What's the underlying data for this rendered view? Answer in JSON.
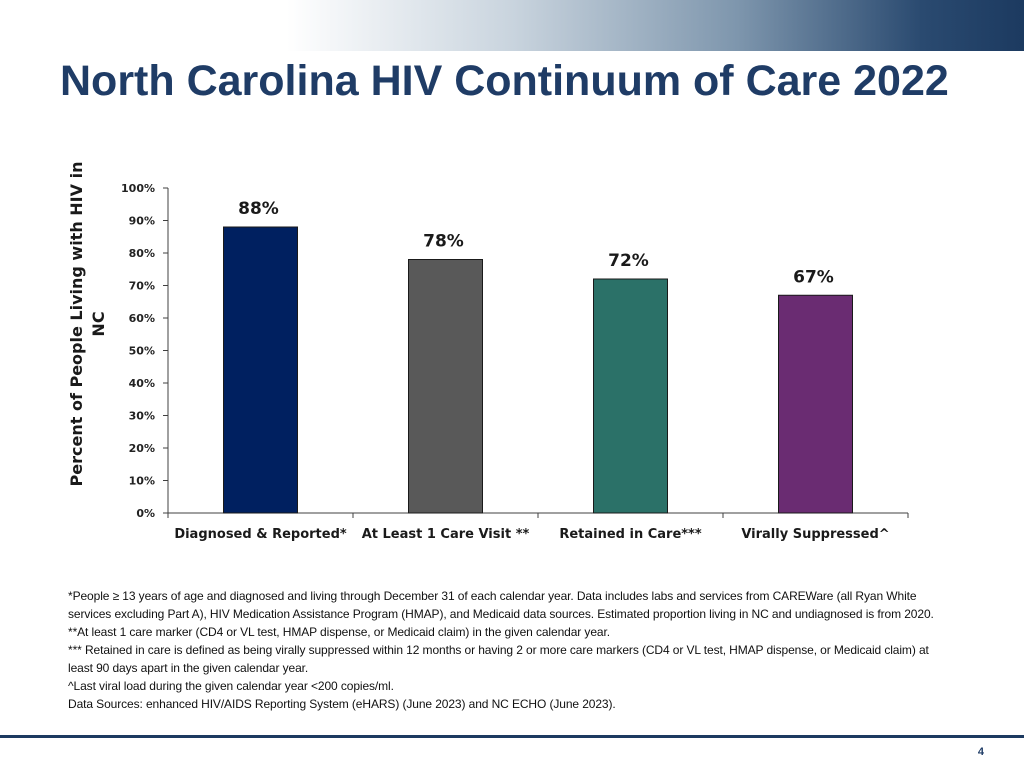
{
  "title": "North Carolina HIV Continuum of Care 2022",
  "chart_data": {
    "type": "bar",
    "categories": [
      "Diagnosed & Reported*",
      "At Least 1 Care Visit **",
      "Retained in Care***",
      "Virally Suppressed^"
    ],
    "values": [
      88,
      78,
      72,
      67
    ],
    "data_labels": [
      "88%",
      "78%",
      "72%",
      "67%"
    ],
    "colors": [
      "#002060",
      "#595959",
      "#2b7168",
      "#6a2c72"
    ],
    "ylabel": "Percent of People Living with HIV in NC",
    "xlabel": "",
    "ylim": [
      0,
      100
    ],
    "yticks": [
      0,
      10,
      20,
      30,
      40,
      50,
      60,
      70,
      80,
      90,
      100
    ],
    "ytick_labels": [
      "0%",
      "10%",
      "20%",
      "30%",
      "40%",
      "50%",
      "60%",
      "70%",
      "80%",
      "90%",
      "100%"
    ],
    "grid": false,
    "legend": "none"
  },
  "footnotes": [
    "*People ≥ 13 years of age and diagnosed and living through December 31 of each calendar year. Data includes labs and services from CAREWare (all Ryan White services excluding Part A), HIV Medication Assistance Program (HMAP), and Medicaid data sources. Estimated proportion living in NC and undiagnosed is from 2020.",
    "**At least 1 care marker (CD4 or VL test, HMAP dispense, or Medicaid claim) in the given calendar year.",
    "*** Retained in care is defined as being virally suppressed within 12 months or having 2 or more care markers (CD4 or VL test, HMAP dispense, or Medicaid claim) at least 90 days apart in the given calendar year.",
    "^Last viral load during the given calendar year <200 copies/ml.",
    "Data Sources: enhanced HIV/AIDS Reporting System (eHARS) (June 2023) and NC ECHO (June 2023)."
  ],
  "page_number": "4"
}
